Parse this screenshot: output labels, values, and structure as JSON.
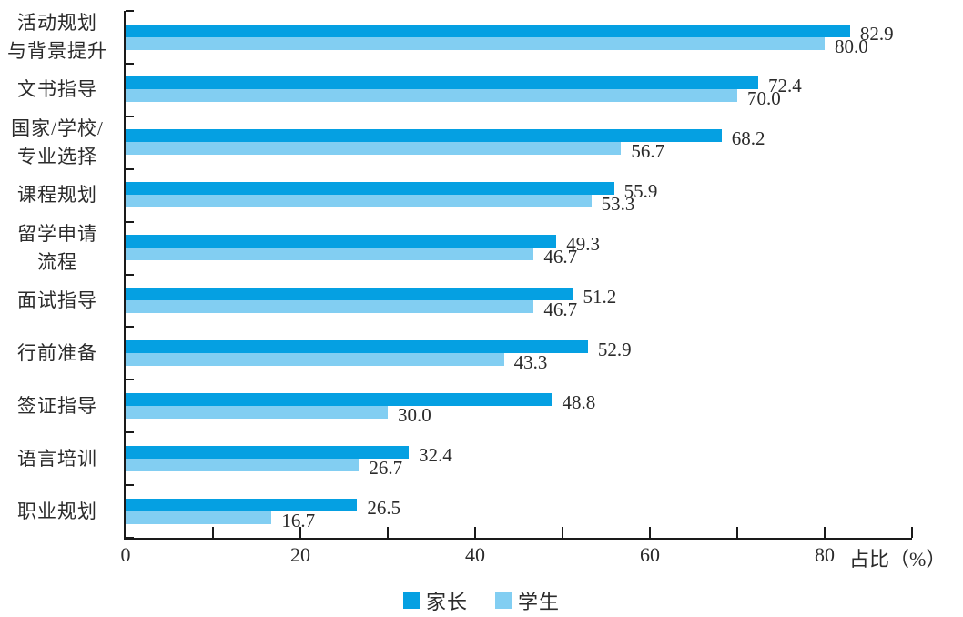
{
  "chart_data": {
    "type": "bar",
    "orientation": "horizontal",
    "title": "",
    "xlabel": "占比（%）",
    "ylabel": "",
    "xlim": [
      0,
      90
    ],
    "xticks": [
      0,
      20,
      40,
      60,
      80
    ],
    "minor_tick_step": 10,
    "grid": false,
    "legend_position": "bottom-center",
    "value_labels_decimals": 1,
    "categories": [
      [
        "活动规划",
        "与背景提升"
      ],
      [
        "文书指导"
      ],
      [
        "国家/学校/",
        "专业选择"
      ],
      [
        "课程规划"
      ],
      [
        "留学申请",
        "流程"
      ],
      [
        "面试指导"
      ],
      [
        "行前准备"
      ],
      [
        "签证指导"
      ],
      [
        "语言培训"
      ],
      [
        "职业规划"
      ]
    ],
    "series": [
      {
        "name": "家长",
        "color": "#05A0E2",
        "values": [
          82.9,
          72.4,
          68.2,
          55.9,
          49.3,
          51.2,
          52.9,
          48.8,
          32.4,
          26.5
        ]
      },
      {
        "name": "学生",
        "color": "#82CEF2",
        "values": [
          80.0,
          70.0,
          56.7,
          53.3,
          46.7,
          46.7,
          43.3,
          30.0,
          26.7,
          16.7
        ]
      }
    ],
    "axis_color": "#1a1a1a"
  }
}
